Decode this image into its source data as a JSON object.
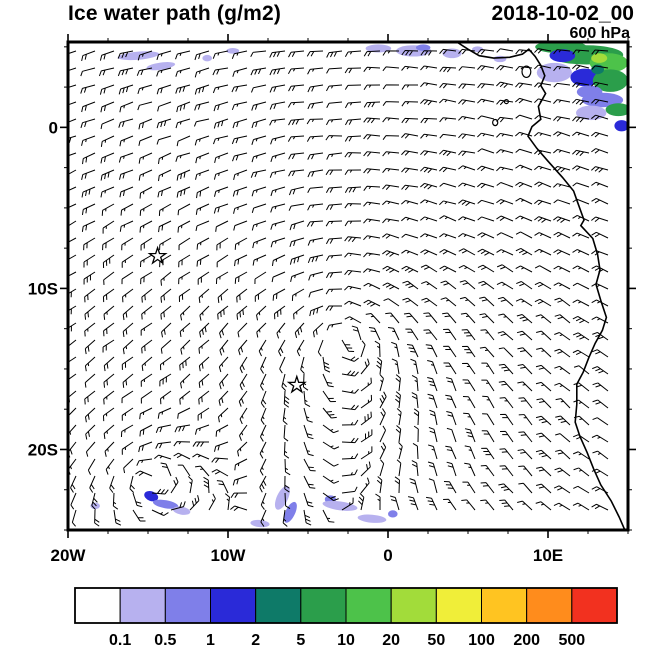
{
  "header": {
    "title": "Ice water path (g/m2)",
    "datetime": "2018-10-02_00",
    "level": "600 hPa"
  },
  "axes": {
    "x_ticks": [
      {
        "label": "20W",
        "lon": -20
      },
      {
        "label": "10W",
        "lon": -10
      },
      {
        "label": "0",
        "lon": 0
      },
      {
        "label": "10E",
        "lon": 10
      }
    ],
    "y_ticks": [
      {
        "label": "0",
        "lat": 0
      },
      {
        "label": "10S",
        "lat": -10
      },
      {
        "label": "20S",
        "lat": -20
      }
    ]
  },
  "colorbar": {
    "levels": [
      "0.1",
      "0.5",
      "1",
      "2",
      "5",
      "10",
      "20",
      "50",
      "100",
      "200",
      "500"
    ],
    "colors": [
      "#ffffff",
      "#b7b1ef",
      "#7f7fe9",
      "#2a2ad8",
      "#0e7a68",
      "#2b9e4b",
      "#4dc24a",
      "#a2dc3a",
      "#f0ee39",
      "#ffc421",
      "#ff8c1c",
      "#f2311f"
    ]
  },
  "chart_data": {
    "type": "heatmap",
    "title": "Ice water path (g/m2)",
    "valid_time": "2018-10-02_00",
    "pressure_level": "600 hPa",
    "units": "g/m2",
    "lon_range": [
      -20,
      15
    ],
    "lat_range": [
      -25,
      5.3
    ],
    "colorbar_levels": [
      0.1,
      0.5,
      1,
      2,
      5,
      10,
      20,
      50,
      100,
      200,
      500
    ],
    "overlays": {
      "wind_barbs": true,
      "coastline": true,
      "legend_position": "bottom"
    },
    "markers": [
      {
        "lon": -14.4,
        "lat": -8.0
      },
      {
        "lon": -5.7,
        "lat": -16.0
      }
    ],
    "coastline": [
      [
        4.3,
        5.3
      ],
      [
        5.0,
        4.85
      ],
      [
        5.7,
        4.45
      ],
      [
        6.6,
        4.3
      ],
      [
        7.6,
        4.35
      ],
      [
        8.4,
        4.55
      ],
      [
        8.8,
        4.85
      ],
      [
        9.2,
        4.4
      ],
      [
        9.55,
        3.85
      ],
      [
        9.8,
        3.2
      ],
      [
        9.55,
        2.6
      ],
      [
        9.85,
        2.1
      ],
      [
        9.4,
        1.3
      ],
      [
        9.55,
        0.5
      ],
      [
        9.0,
        0.05
      ],
      [
        8.75,
        -0.55
      ],
      [
        9.3,
        -1.3
      ],
      [
        10.0,
        -2.1
      ],
      [
        10.9,
        -3.1
      ],
      [
        11.6,
        -3.95
      ],
      [
        11.85,
        -4.65
      ],
      [
        12.25,
        -5.75
      ],
      [
        12.05,
        -6.1
      ],
      [
        12.8,
        -6.9
      ],
      [
        13.1,
        -7.9
      ],
      [
        13.25,
        -8.85
      ],
      [
        13.0,
        -9.75
      ],
      [
        13.3,
        -10.75
      ],
      [
        13.65,
        -11.8
      ],
      [
        13.4,
        -12.6
      ],
      [
        12.95,
        -13.4
      ],
      [
        12.55,
        -14.3
      ],
      [
        12.2,
        -15.2
      ],
      [
        11.8,
        -15.95
      ],
      [
        11.8,
        -17.2
      ],
      [
        11.7,
        -18.3
      ],
      [
        12.0,
        -19.2
      ],
      [
        12.45,
        -20.2
      ],
      [
        12.85,
        -21.2
      ],
      [
        13.3,
        -22.2
      ],
      [
        13.95,
        -23.2
      ],
      [
        14.45,
        -24.2
      ],
      [
        14.8,
        -25.0
      ]
    ],
    "islands": [
      {
        "lon": 8.65,
        "lat": 3.45,
        "w": 0.55,
        "h": 0.7
      },
      {
        "lon": 7.4,
        "lat": 1.6,
        "w": 0.25,
        "h": 0.25
      },
      {
        "lon": 6.7,
        "lat": 0.3,
        "w": 0.32,
        "h": 0.38
      }
    ],
    "shading_patches": [
      {
        "lon": -15.6,
        "lat": 4.45,
        "w": 2.6,
        "h": 0.5,
        "ci": 1,
        "rot": -5
      },
      {
        "lon": -14.2,
        "lat": 3.8,
        "w": 1.8,
        "h": 0.45,
        "ci": 1,
        "rot": -8
      },
      {
        "lon": -11.3,
        "lat": 4.3,
        "w": 0.6,
        "h": 0.4,
        "ci": 1,
        "rot": 0
      },
      {
        "lon": -9.7,
        "lat": 4.75,
        "w": 0.8,
        "h": 0.35,
        "ci": 1,
        "rot": 0
      },
      {
        "lon": -0.6,
        "lat": 4.9,
        "w": 1.6,
        "h": 0.5,
        "ci": 1,
        "rot": 0
      },
      {
        "lon": 1.6,
        "lat": 4.75,
        "w": 2.2,
        "h": 0.7,
        "ci": 1,
        "rot": 0
      },
      {
        "lon": 2.2,
        "lat": 4.95,
        "w": 0.9,
        "h": 0.4,
        "ci": 2,
        "rot": 0
      },
      {
        "lon": 4.0,
        "lat": 4.6,
        "w": 1.2,
        "h": 0.6,
        "ci": 1,
        "rot": 0
      },
      {
        "lon": 5.6,
        "lat": 4.85,
        "w": 0.7,
        "h": 0.35,
        "ci": 1,
        "rot": 0
      },
      {
        "lon": 7.0,
        "lat": 4.25,
        "w": 0.8,
        "h": 0.4,
        "ci": 1,
        "rot": 0
      },
      {
        "lon": 10.8,
        "lat": 5.0,
        "w": 3.2,
        "h": 0.8,
        "ci": 5,
        "rot": 0
      },
      {
        "lon": 12.4,
        "lat": 4.5,
        "w": 4.6,
        "h": 1.2,
        "ci": 5,
        "rot": 0
      },
      {
        "lon": 10.9,
        "lat": 4.45,
        "w": 1.6,
        "h": 0.8,
        "ci": 3,
        "rot": 0
      },
      {
        "lon": 13.8,
        "lat": 4.0,
        "w": 2.4,
        "h": 1.2,
        "ci": 6,
        "rot": 0
      },
      {
        "lon": 13.2,
        "lat": 4.3,
        "w": 1.0,
        "h": 0.6,
        "ci": 7,
        "rot": 0
      },
      {
        "lon": 10.4,
        "lat": 3.4,
        "w": 2.2,
        "h": 1.2,
        "ci": 1,
        "rot": 0
      },
      {
        "lon": 12.3,
        "lat": 3.1,
        "w": 1.8,
        "h": 1.1,
        "ci": 3,
        "rot": 0
      },
      {
        "lon": 13.9,
        "lat": 2.9,
        "w": 2.2,
        "h": 1.4,
        "ci": 5,
        "rot": 0
      },
      {
        "lon": 13.1,
        "lat": 3.6,
        "w": 0.8,
        "h": 0.6,
        "ci": 4,
        "rot": 0
      },
      {
        "lon": 12.6,
        "lat": 2.2,
        "w": 1.6,
        "h": 0.8,
        "ci": 2,
        "rot": 0
      },
      {
        "lon": 13.4,
        "lat": 1.7,
        "w": 2.6,
        "h": 0.9,
        "ci": 2,
        "rot": 0
      },
      {
        "lon": 14.4,
        "lat": 1.1,
        "w": 1.6,
        "h": 0.8,
        "ci": 5,
        "rot": 0
      },
      {
        "lon": 12.7,
        "lat": 0.9,
        "w": 1.9,
        "h": 0.9,
        "ci": 1,
        "rot": 0
      },
      {
        "lon": 14.6,
        "lat": 0.1,
        "w": 0.9,
        "h": 0.7,
        "ci": 3,
        "rot": 0
      },
      {
        "lon": -18.3,
        "lat": -23.5,
        "w": 0.6,
        "h": 0.4,
        "ci": 1,
        "rot": 0
      },
      {
        "lon": -14.8,
        "lat": -22.9,
        "w": 0.9,
        "h": 0.6,
        "ci": 3,
        "rot": 20
      },
      {
        "lon": -13.9,
        "lat": -23.4,
        "w": 1.6,
        "h": 0.5,
        "ci": 2,
        "rot": 10
      },
      {
        "lon": -12.9,
        "lat": -23.8,
        "w": 1.1,
        "h": 0.5,
        "ci": 1,
        "rot": 10
      },
      {
        "lon": -6.6,
        "lat": -23.0,
        "w": 0.7,
        "h": 1.6,
        "ci": 1,
        "rot": 25
      },
      {
        "lon": -6.1,
        "lat": -23.9,
        "w": 0.6,
        "h": 1.4,
        "ci": 2,
        "rot": 25
      },
      {
        "lon": -3.6,
        "lat": -23.1,
        "w": 0.7,
        "h": 0.5,
        "ci": 2,
        "rot": 0
      },
      {
        "lon": -3.0,
        "lat": -23.5,
        "w": 2.2,
        "h": 0.55,
        "ci": 1,
        "rot": 8
      },
      {
        "lon": -1.0,
        "lat": -24.3,
        "w": 1.8,
        "h": 0.5,
        "ci": 1,
        "rot": 5
      },
      {
        "lon": 0.3,
        "lat": -24.0,
        "w": 0.6,
        "h": 0.45,
        "ci": 2,
        "rot": 0
      },
      {
        "lon": -8.0,
        "lat": -24.6,
        "w": 1.2,
        "h": 0.45,
        "ci": 1,
        "rot": 5
      }
    ],
    "wind_field": {
      "background_u": -0.55,
      "background_v": -0.05,
      "vortices": [
        {
          "lon": -2.7,
          "lat": -12.9,
          "strength": 1.1,
          "radius_deg": 16
        },
        {
          "lon": -14.9,
          "lat": -21.8,
          "strength": 1.7,
          "radius_deg": 3.8
        }
      ]
    }
  }
}
